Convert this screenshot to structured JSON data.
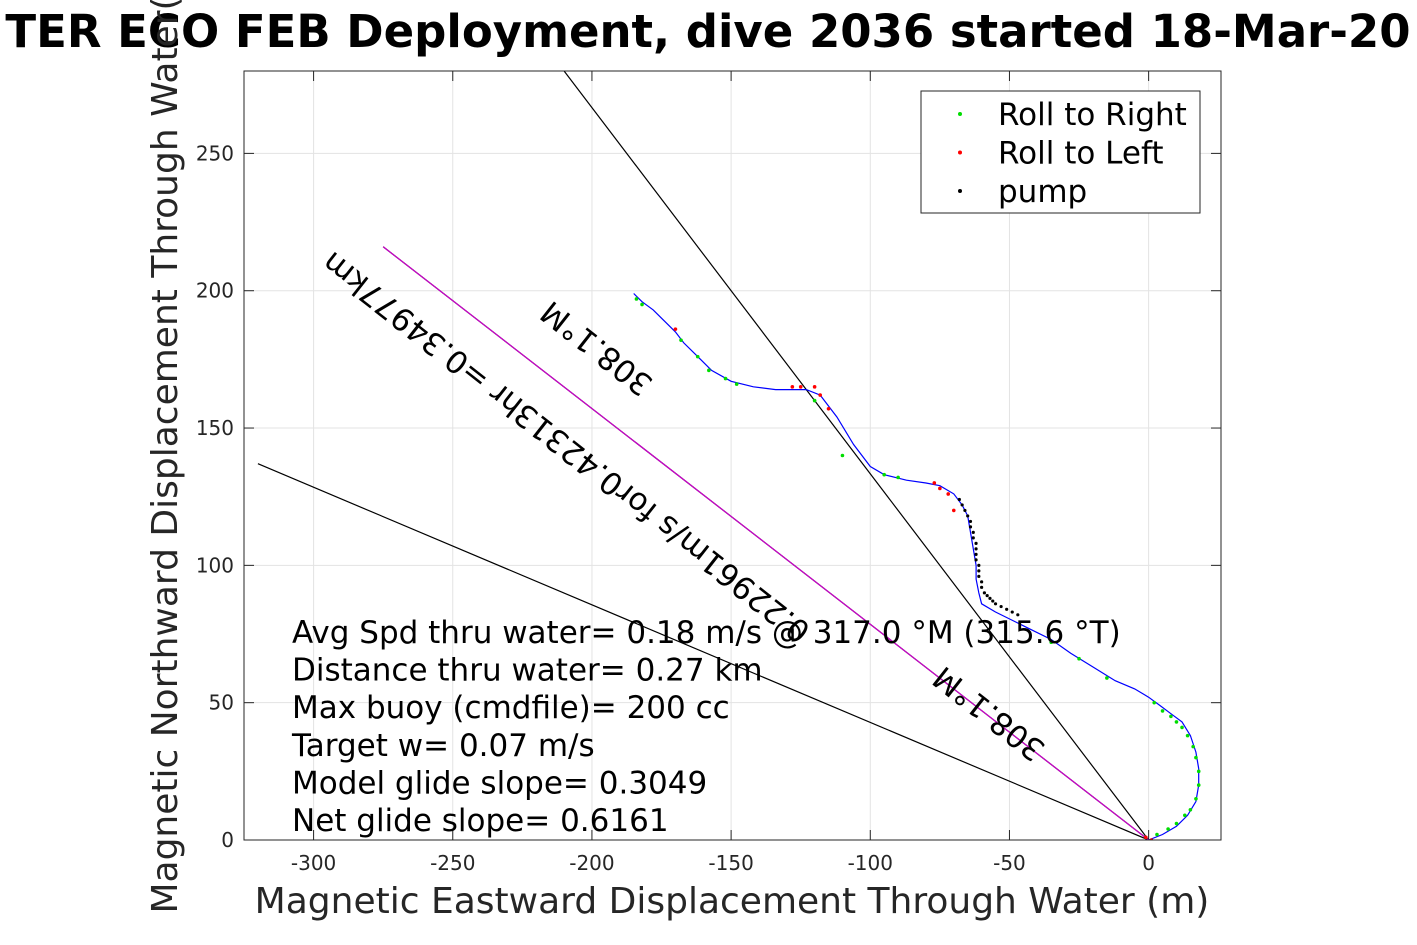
{
  "chart_data": {
    "type": "line",
    "title": "TER ECO FEB Deployment, dive 2036 started 18-Mar-20",
    "xlabel": "Magnetic Eastward Displacement Through Water (m)",
    "ylabel": "Magnetic Northward Displacement Through Water(",
    "xlim": [
      -325,
      26
    ],
    "ylim": [
      0,
      280
    ],
    "xticks": [
      -300,
      -250,
      -200,
      -150,
      -100,
      -50,
      0
    ],
    "yticks": [
      0,
      50,
      100,
      150,
      200,
      250
    ],
    "grid": true,
    "legend_position": "top-right",
    "legend": [
      {
        "name": "Roll to Right",
        "color": "#00dd00"
      },
      {
        "name": "Roll to Left",
        "color": "#ff0000"
      },
      {
        "name": "pump",
        "color": "#000000"
      }
    ],
    "track_color": "#0000ff",
    "track": {
      "x": [
        0,
        5,
        10,
        14,
        17,
        18,
        18,
        17,
        15,
        12,
        8,
        4,
        0,
        -5,
        -12,
        -20,
        -28,
        -35,
        -45,
        -55,
        -60,
        -61,
        -62,
        -62,
        -63,
        -64,
        -65,
        -67,
        -70,
        -75,
        -80,
        -87,
        -95,
        -100,
        -106,
        -112,
        -118,
        -123,
        -128,
        -134,
        -142,
        -150,
        -157,
        -162,
        -167,
        -170,
        -174,
        -178,
        -182,
        -185
      ],
      "y": [
        0,
        2,
        5,
        9,
        14,
        20,
        26,
        32,
        38,
        43,
        46,
        49,
        52,
        55,
        58,
        63,
        68,
        73,
        78,
        83,
        86,
        90,
        95,
        100,
        106,
        112,
        118,
        122,
        126,
        129,
        130,
        131,
        133,
        136,
        144,
        154,
        162,
        164,
        164,
        164,
        165,
        167,
        171,
        176,
        181,
        185,
        189,
        193,
        196,
        199
      ]
    },
    "roll_right_points": {
      "x": [
        3,
        7,
        10,
        13,
        15,
        17,
        18,
        18,
        17,
        16,
        14,
        12,
        10,
        8,
        5,
        2,
        -15,
        -25,
        -35,
        -90,
        -95,
        -110,
        -120,
        -148,
        -152,
        -158,
        -162,
        -168,
        -182,
        -184
      ],
      "y": [
        2,
        4,
        6,
        9,
        11,
        15,
        20,
        25,
        30,
        34,
        38,
        41,
        43,
        45,
        47,
        50,
        59,
        66,
        72,
        132,
        133,
        140,
        160,
        166,
        168,
        171,
        176,
        182,
        195,
        197
      ],
      "color": "#00dd00"
    },
    "roll_left_points": {
      "x": [
        -1,
        1,
        -70,
        -72,
        -75,
        -77,
        -115,
        -118,
        -120,
        -125,
        -128,
        -170
      ],
      "y": [
        1,
        0,
        120,
        126,
        128,
        130,
        157,
        162,
        165,
        165,
        165,
        186
      ],
      "color": "#ff0000"
    },
    "pump_points": {
      "x": [
        -55,
        -56,
        -57,
        -58,
        -59,
        -60,
        -60,
        -61,
        -61,
        -61,
        -62,
        -62,
        -62,
        -62,
        -63,
        -63,
        -64,
        -64,
        -65,
        -66,
        -67,
        -68,
        -53,
        -51,
        -49,
        -47
      ],
      "y": [
        86,
        87,
        88,
        89,
        90,
        92,
        94,
        96,
        98,
        100,
        102,
        104,
        106,
        108,
        110,
        112,
        114,
        116,
        118,
        120,
        122,
        124,
        85,
        84,
        83,
        82
      ],
      "color": "#000000"
    },
    "reference_lines": [
      {
        "x": [
          0,
          -210
        ],
        "y": [
          0,
          280
        ],
        "color": "#000000"
      },
      {
        "x": [
          0,
          -320
        ],
        "y": [
          0,
          137
        ],
        "color": "#000000"
      },
      {
        "x": [
          0,
          -275
        ],
        "y": [
          0,
          216
        ],
        "color": "#000000"
      },
      {
        "x": [
          0,
          -275
        ],
        "y": [
          0,
          216
        ],
        "color": "#cc00cc"
      }
    ],
    "annotations": [
      {
        "text": "308.1°M",
        "x": -196,
        "y": 182,
        "angle": 38.2
      },
      {
        "text": "0.22961m/s for0.42313hr =0.34977km",
        "x": -207,
        "y": 146,
        "angle": 38.2
      },
      {
        "text": "308.1°M",
        "x": -55,
        "y": 49,
        "angle": 38.2
      }
    ],
    "stats": [
      "Avg Spd thru water=  0.18 m/s @ 317.0 °M (315.6 °T)",
      "Distance thru water=  0.27 km",
      "Max buoy (cmdfile)= 200 cc",
      "Target w= 0.07 m/s",
      "Model glide slope= 0.3049",
      "Net glide slope= 0.6161"
    ]
  }
}
